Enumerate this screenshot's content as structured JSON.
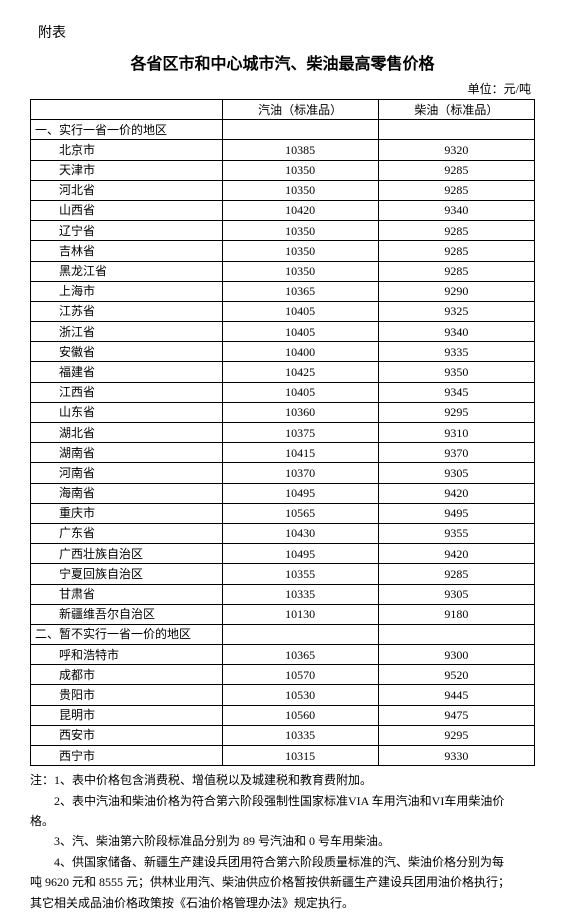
{
  "attachmentLabel": "附表",
  "title": "各省区市和中心城市汽、柴油最高零售价格",
  "unitLabel": "单位：元/吨",
  "headers": {
    "gasoline": "汽油（标准品）",
    "diesel": "柴油（标准品）"
  },
  "section1": {
    "label": "一、实行一省一价的地区",
    "rows": [
      {
        "region": "北京市",
        "gas": "10385",
        "diesel": "9320"
      },
      {
        "region": "天津市",
        "gas": "10350",
        "diesel": "9285"
      },
      {
        "region": "河北省",
        "gas": "10350",
        "diesel": "9285"
      },
      {
        "region": "山西省",
        "gas": "10420",
        "diesel": "9340"
      },
      {
        "region": "辽宁省",
        "gas": "10350",
        "diesel": "9285"
      },
      {
        "region": "吉林省",
        "gas": "10350",
        "diesel": "9285"
      },
      {
        "region": "黑龙江省",
        "gas": "10350",
        "diesel": "9285"
      },
      {
        "region": "上海市",
        "gas": "10365",
        "diesel": "9290"
      },
      {
        "region": "江苏省",
        "gas": "10405",
        "diesel": "9325"
      },
      {
        "region": "浙江省",
        "gas": "10405",
        "diesel": "9340"
      },
      {
        "region": "安徽省",
        "gas": "10400",
        "diesel": "9335"
      },
      {
        "region": "福建省",
        "gas": "10425",
        "diesel": "9350"
      },
      {
        "region": "江西省",
        "gas": "10405",
        "diesel": "9345"
      },
      {
        "region": "山东省",
        "gas": "10360",
        "diesel": "9295"
      },
      {
        "region": "湖北省",
        "gas": "10375",
        "diesel": "9310"
      },
      {
        "region": "湖南省",
        "gas": "10415",
        "diesel": "9370"
      },
      {
        "region": "河南省",
        "gas": "10370",
        "diesel": "9305"
      },
      {
        "region": "海南省",
        "gas": "10495",
        "diesel": "9420"
      },
      {
        "region": "重庆市",
        "gas": "10565",
        "diesel": "9495"
      },
      {
        "region": "广东省",
        "gas": "10430",
        "diesel": "9355"
      },
      {
        "region": "广西壮族自治区",
        "gas": "10495",
        "diesel": "9420"
      },
      {
        "region": "宁夏回族自治区",
        "gas": "10355",
        "diesel": "9285"
      },
      {
        "region": "甘肃省",
        "gas": "10335",
        "diesel": "9305"
      },
      {
        "region": "新疆维吾尔自治区",
        "gas": "10130",
        "diesel": "9180"
      }
    ]
  },
  "section2": {
    "label": "二、暂不实行一省一价的地区",
    "rows": [
      {
        "region": "呼和浩特市",
        "gas": "10365",
        "diesel": "9300"
      },
      {
        "region": "成都市",
        "gas": "10570",
        "diesel": "9520"
      },
      {
        "region": "贵阳市",
        "gas": "10530",
        "diesel": "9445"
      },
      {
        "region": "昆明市",
        "gas": "10560",
        "diesel": "9475"
      },
      {
        "region": "西安市",
        "gas": "10335",
        "diesel": "9295"
      },
      {
        "region": "西宁市",
        "gas": "10315",
        "diesel": "9330"
      }
    ]
  },
  "notes": {
    "n1": "注：1、表中价格包含消费税、增值税以及城建税和教育费附加。",
    "n2a": "　　2、表中汽油和柴油价格为符合第六阶段强制性国家标准VIA 车用汽油和VI车用柴油价",
    "n2b": "格。",
    "n3": "　　3、汽、柴油第六阶段标准品分别为 89 号汽油和 0 号车用柴油。",
    "n4a": "　　4、供国家储备、新疆生产建设兵团用符合第六阶段质量标准的汽、柴油价格分别为每",
    "n4b": "吨 9620 元和 8555 元；供林业用汽、柴油供应价格暂按供新疆生产建设兵团用油价格执行；",
    "n4c": "其它相关成品油价格政策按《石油价格管理办法》规定执行。"
  },
  "style": {
    "pageBg": "#ffffff",
    "textColor": "#000000",
    "borderColor": "#000000",
    "titleFontSize": 16,
    "bodyFontSize": 12,
    "fontFamily": "SimSun"
  }
}
